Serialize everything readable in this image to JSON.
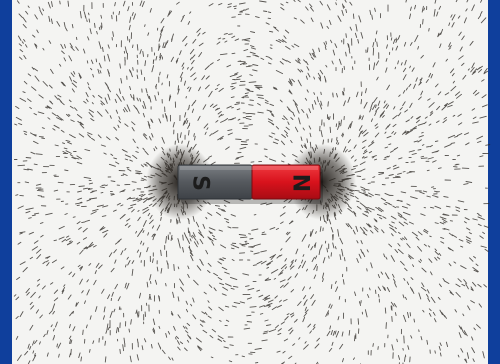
{
  "image": {
    "subject": "bar-magnet-with-iron-filings",
    "colors": {
      "border": "#0f3f9c",
      "paper": "#f4f4f2",
      "filings": "#2a2622",
      "south_pole": "#5a5e63",
      "north_pole": "#e01a24",
      "letter": "#1c1c1c"
    }
  },
  "magnet": {
    "south_label": "S",
    "north_label": "N"
  }
}
